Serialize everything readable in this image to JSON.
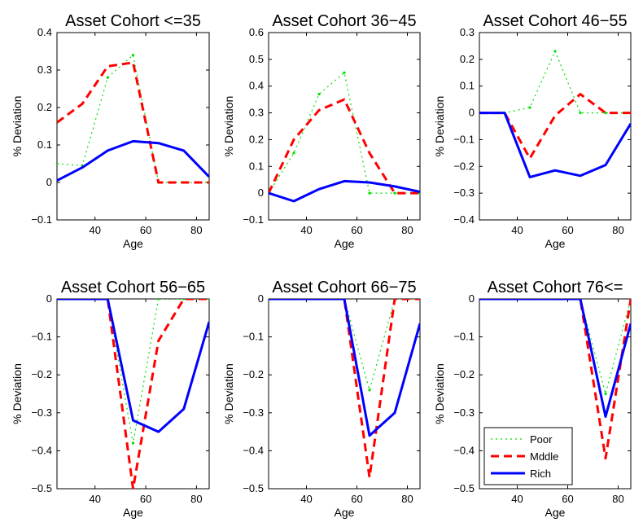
{
  "chart_data": [
    {
      "type": "line",
      "title": "Asset Cohort <=35",
      "xlabel": "Age",
      "ylabel": "% Deviation",
      "xlim": [
        25,
        85
      ],
      "ylim": [
        -0.1,
        0.4
      ],
      "xticks": [
        40,
        60,
        80
      ],
      "yticks": [
        -0.1,
        0,
        0.1,
        0.2,
        0.3,
        0.4
      ],
      "ytick_labels": [
        "−0.1",
        "0",
        "0.1",
        "0.2",
        "0.3",
        "0.4"
      ],
      "legend": false,
      "x": [
        25,
        35,
        45,
        55,
        65,
        75,
        85
      ],
      "series": [
        {
          "name": "Poor",
          "values": [
            0.05,
            0.045,
            0.28,
            0.34,
            0.0,
            0.0,
            0.0
          ]
        },
        {
          "name": "Mddle",
          "values": [
            0.16,
            0.21,
            0.31,
            0.32,
            0.0,
            0.0,
            0.0
          ]
        },
        {
          "name": "Rich",
          "values": [
            0.005,
            0.04,
            0.085,
            0.11,
            0.105,
            0.085,
            0.015
          ]
        }
      ]
    },
    {
      "type": "line",
      "title": "Asset Cohort 36−45",
      "xlabel": "Age",
      "ylabel": "% Deviation",
      "xlim": [
        25,
        85
      ],
      "ylim": [
        -0.1,
        0.6
      ],
      "xticks": [
        40,
        60,
        80
      ],
      "yticks": [
        -0.1,
        0,
        0.1,
        0.2,
        0.3,
        0.4,
        0.5,
        0.6
      ],
      "ytick_labels": [
        "−0.1",
        "0",
        "0.1",
        "0.2",
        "0.3",
        "0.4",
        "0.5",
        "0.6"
      ],
      "legend": false,
      "x": [
        25,
        35,
        45,
        55,
        65,
        75,
        85
      ],
      "series": [
        {
          "name": "Poor",
          "values": [
            0.0,
            0.15,
            0.37,
            0.45,
            0.0,
            0.0,
            0.0
          ]
        },
        {
          "name": "Mddle",
          "values": [
            0.0,
            0.2,
            0.31,
            0.35,
            0.15,
            0.0,
            0.0
          ]
        },
        {
          "name": "Rich",
          "values": [
            0.0,
            -0.03,
            0.015,
            0.045,
            0.04,
            0.025,
            0.005
          ]
        }
      ]
    },
    {
      "type": "line",
      "title": "Asset Cohort 46−55",
      "xlabel": "Age",
      "ylabel": "% Deviation",
      "xlim": [
        25,
        85
      ],
      "ylim": [
        -0.4,
        0.3
      ],
      "xticks": [
        40,
        60,
        80
      ],
      "yticks": [
        -0.4,
        -0.3,
        -0.2,
        -0.1,
        0,
        0.1,
        0.2,
        0.3
      ],
      "ytick_labels": [
        "−0.4",
        "−0.3",
        "−0.2",
        "−0.1",
        "0",
        "0.1",
        "0.2",
        "0.3"
      ],
      "legend": false,
      "x": [
        25,
        35,
        45,
        55,
        65,
        75,
        85
      ],
      "series": [
        {
          "name": "Poor",
          "values": [
            0.0,
            0.0,
            0.02,
            0.23,
            0.0,
            0.0,
            0.0
          ]
        },
        {
          "name": "Mddle",
          "values": [
            0.0,
            0.0,
            -0.17,
            -0.01,
            0.07,
            0.0,
            0.0
          ]
        },
        {
          "name": "Rich",
          "values": [
            0.0,
            0.0,
            -0.24,
            -0.215,
            -0.235,
            -0.195,
            -0.04
          ]
        }
      ]
    },
    {
      "type": "line",
      "title": "Asset Cohort 56−65",
      "xlabel": "Age",
      "ylabel": "% Deviation",
      "xlim": [
        25,
        85
      ],
      "ylim": [
        -0.5,
        0
      ],
      "xticks": [
        40,
        60,
        80
      ],
      "yticks": [
        -0.5,
        -0.4,
        -0.3,
        -0.2,
        -0.1,
        0
      ],
      "ytick_labels": [
        "−0.5",
        "−0.4",
        "−0.3",
        "−0.2",
        "−0.1",
        "0"
      ],
      "legend": false,
      "x": [
        25,
        35,
        45,
        55,
        65,
        75,
        85
      ],
      "series": [
        {
          "name": "Poor",
          "values": [
            0.0,
            0.0,
            0.0,
            -0.38,
            0.0,
            0.0,
            0.0
          ]
        },
        {
          "name": "Mddle",
          "values": [
            0.0,
            0.0,
            0.0,
            -0.5,
            -0.11,
            0.0,
            0.0
          ]
        },
        {
          "name": "Rich",
          "values": [
            0.0,
            0.0,
            0.0,
            -0.32,
            -0.35,
            -0.29,
            -0.06
          ]
        }
      ]
    },
    {
      "type": "line",
      "title": "Asset Cohort 66−75",
      "xlabel": "Age",
      "ylabel": "% Deviation",
      "xlim": [
        25,
        85
      ],
      "ylim": [
        -0.5,
        0
      ],
      "xticks": [
        40,
        60,
        80
      ],
      "yticks": [
        -0.5,
        -0.4,
        -0.3,
        -0.2,
        -0.1,
        0
      ],
      "ytick_labels": [
        "−0.5",
        "−0.4",
        "−0.3",
        "−0.2",
        "−0.1",
        "0"
      ],
      "legend": false,
      "x": [
        25,
        35,
        45,
        55,
        65,
        75,
        85
      ],
      "series": [
        {
          "name": "Poor",
          "values": [
            0.0,
            0.0,
            0.0,
            0.0,
            -0.24,
            0.0,
            0.0
          ]
        },
        {
          "name": "Mddle",
          "values": [
            0.0,
            0.0,
            0.0,
            0.0,
            -0.47,
            0.0,
            0.0
          ]
        },
        {
          "name": "Rich",
          "values": [
            0.0,
            0.0,
            0.0,
            0.0,
            -0.36,
            -0.3,
            -0.065
          ]
        }
      ]
    },
    {
      "type": "line",
      "title": "Asset Cohort 76<=",
      "xlabel": "Age",
      "ylabel": "% Deviation",
      "xlim": [
        25,
        85
      ],
      "ylim": [
        -0.5,
        0
      ],
      "xticks": [
        40,
        60,
        80
      ],
      "yticks": [
        -0.5,
        -0.4,
        -0.3,
        -0.2,
        -0.1,
        0
      ],
      "ytick_labels": [
        "−0.5",
        "−0.4",
        "−0.3",
        "−0.2",
        "−0.1",
        "0"
      ],
      "legend": true,
      "legend_placement": "bottom-left",
      "x": [
        25,
        35,
        45,
        55,
        65,
        75,
        85
      ],
      "series": [
        {
          "name": "Poor",
          "values": [
            0.0,
            0.0,
            0.0,
            0.0,
            0.0,
            -0.25,
            0.0
          ]
        },
        {
          "name": "Mddle",
          "values": [
            0.0,
            0.0,
            0.0,
            0.0,
            0.0,
            -0.42,
            0.0
          ]
        },
        {
          "name": "Rich",
          "values": [
            0.0,
            0.0,
            0.0,
            0.0,
            0.0,
            -0.31,
            -0.065
          ]
        }
      ]
    }
  ],
  "series_styles": {
    "Poor": {
      "color": "#00e000",
      "dash": "2,4",
      "width": 1.2
    },
    "Mddle": {
      "color": "#ff0000",
      "dash": "10,6",
      "width": 3
    },
    "Rich": {
      "color": "#0000ff",
      "dash": "",
      "width": 3
    }
  }
}
